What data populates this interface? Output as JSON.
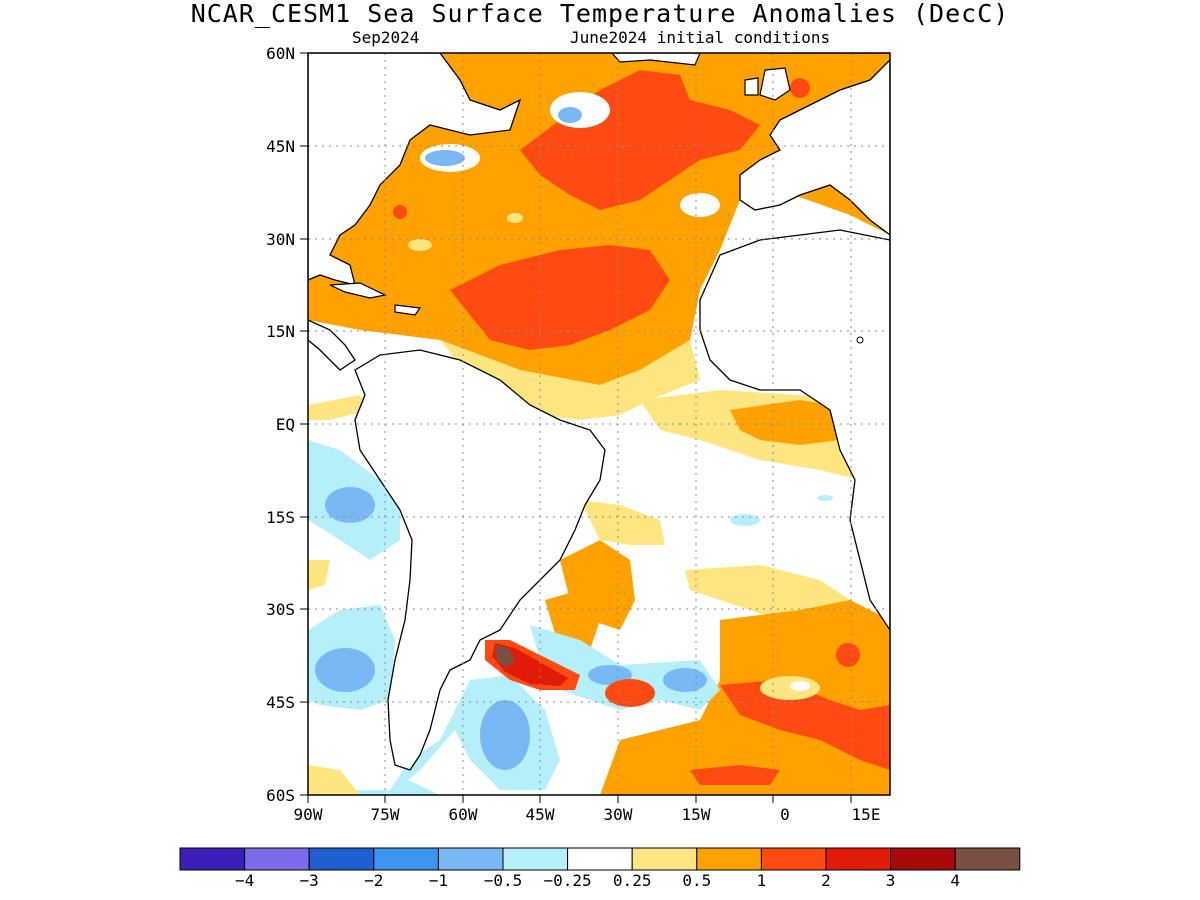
{
  "title": "NCAR_CESM1 Sea Surface Temperature Anomalies (DecC)",
  "subtitle_left": "Sep2024",
  "subtitle_right": "June2024 initial conditions",
  "lat_labels": [
    "60N",
    "45N",
    "30N",
    "15N",
    "EQ",
    "15S",
    "30S",
    "45S",
    "60S"
  ],
  "lon_labels": [
    "90W",
    "75W",
    "60W",
    "45W",
    "30W",
    "15W",
    "0",
    "15E"
  ],
  "colorbar": {
    "colors": [
      "#3b1fb8",
      "#7b6be8",
      "#1e5fd2",
      "#3d95f0",
      "#78b8f5",
      "#b4effa",
      "#ffffff",
      "#ffe57f",
      "#ffa200",
      "#ff4b11",
      "#e01c09",
      "#a80a0a",
      "#7a4f44"
    ],
    "labels": [
      "−4",
      "−3",
      "−2",
      "−1",
      "−0.5",
      "−0.25",
      "0.25",
      "0.5",
      "1",
      "2",
      "3",
      "4"
    ]
  }
}
